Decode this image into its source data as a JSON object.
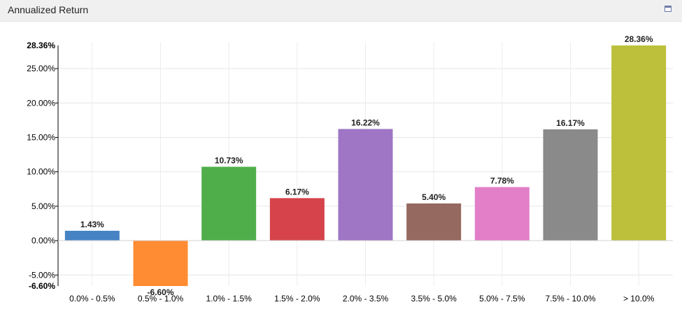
{
  "panel": {
    "title": "Annualized Return"
  },
  "icons": {
    "window": "window-maximize-icon"
  },
  "chart_data": {
    "type": "bar",
    "title": "",
    "xlabel": "",
    "ylabel": "",
    "categories": [
      "0.0% - 0.5%",
      "0.5% - 1.0%",
      "1.0% - 1.5%",
      "1.5% - 2.0%",
      "2.0% - 3.5%",
      "3.5% - 5.0%",
      "5.0% - 7.5%",
      "7.5% - 10.0%",
      "> 10.0%"
    ],
    "values": [
      1.43,
      -6.6,
      10.73,
      6.17,
      16.22,
      5.4,
      7.78,
      16.17,
      28.36
    ],
    "data_labels": [
      "1.43%",
      "-6.60%",
      "10.73%",
      "6.17%",
      "16.22%",
      "5.40%",
      "7.78%",
      "16.17%",
      "28.36%"
    ],
    "colors": [
      "#4683c4",
      "#ff8c32",
      "#4fae4a",
      "#d6434a",
      "#9e76c5",
      "#956860",
      "#e27fc8",
      "#8a8a8a",
      "#bcc03a"
    ],
    "ylim": [
      -6.6,
      28.36
    ],
    "y_ticks": [
      -5,
      0,
      5,
      10,
      15,
      20,
      25
    ],
    "y_tick_labels": [
      "-5.00%",
      "0.00%",
      "5.00%",
      "10.00%",
      "15.00%",
      "20.00%",
      "25.00%"
    ],
    "y_extent_labels": {
      "min": "-6.60%",
      "max": "28.36%"
    },
    "grid": true,
    "legend": "none"
  }
}
